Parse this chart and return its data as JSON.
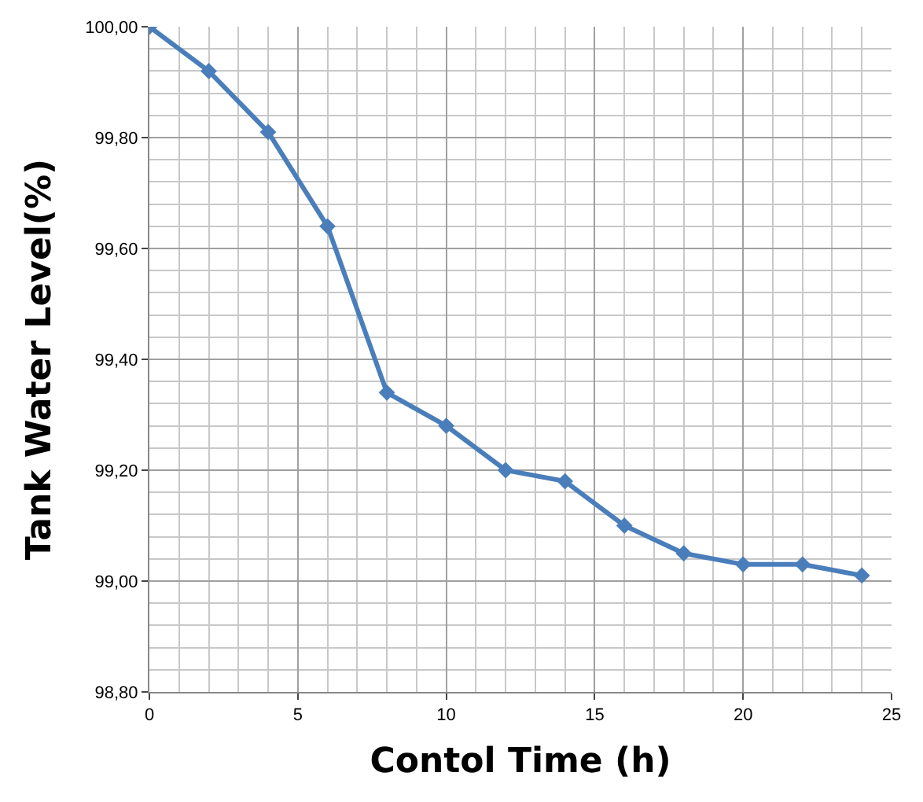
{
  "chart_data": {
    "type": "line",
    "xlabel": "Contol Time (h)",
    "ylabel": "Tank Water Level(%)",
    "x": [
      0,
      2,
      4,
      6,
      8,
      10,
      12,
      14,
      16,
      18,
      20,
      22,
      24
    ],
    "series": [
      {
        "color": "#4a7ebb",
        "values": [
          100.0,
          99.92,
          99.81,
          99.64,
          99.34,
          99.28,
          99.2,
          99.18,
          99.1,
          99.05,
          99.03,
          99.03,
          99.01
        ]
      }
    ],
    "xlim": [
      0,
      25
    ],
    "xticks": [
      0,
      5,
      10,
      15,
      20,
      25
    ],
    "ylim": [
      98.8,
      100.0
    ],
    "yticks": [
      {
        "value": 98.8,
        "label": "98,80"
      },
      {
        "value": 99.0,
        "label": "99,00"
      },
      {
        "value": 99.2,
        "label": "99,20"
      },
      {
        "value": 99.4,
        "label": "99,40"
      },
      {
        "value": 99.6,
        "label": "99,60"
      },
      {
        "value": 99.8,
        "label": "99,80"
      },
      {
        "value": 100.0,
        "label": "100,00"
      }
    ],
    "grid": true,
    "marker": "diamond",
    "line_style": "solid"
  }
}
